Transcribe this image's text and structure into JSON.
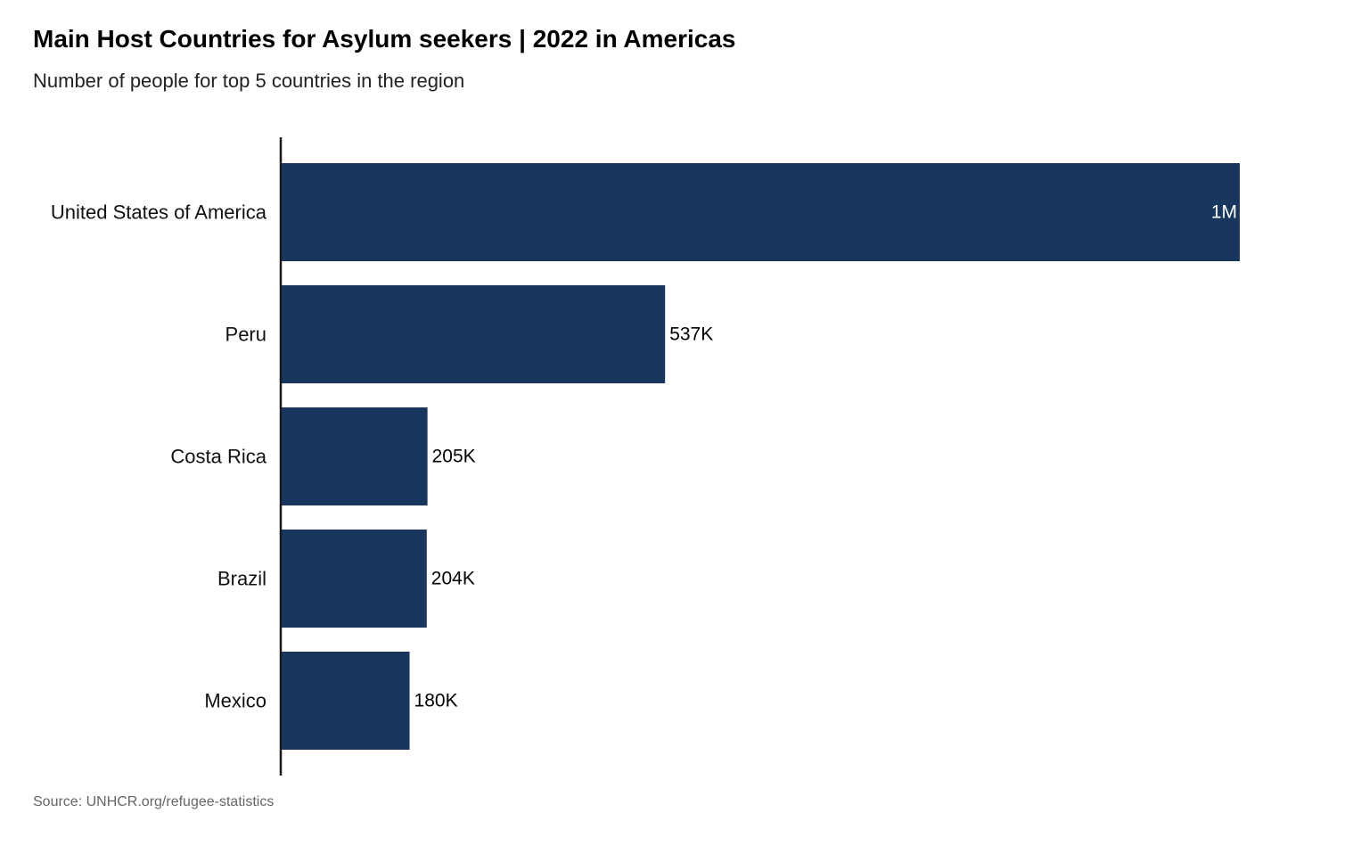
{
  "chart_data": {
    "type": "bar",
    "orientation": "horizontal",
    "title": "Main Host Countries for Asylum seekers | 2022 in Americas",
    "subtitle": "Number of people for top 5 countries in the region",
    "source": "Source: UNHCR.org/refugee-statistics",
    "categories": [
      "United States of America",
      "Peru",
      "Costa Rica",
      "Brazil",
      "Mexico"
    ],
    "values": [
      1340000,
      537000,
      205000,
      204000,
      180000
    ],
    "labels": [
      "1M",
      "537K",
      "205K",
      "204K",
      "180K"
    ],
    "xlim": [
      0,
      1340000
    ],
    "grid": false,
    "bar_color": "#18375f"
  }
}
